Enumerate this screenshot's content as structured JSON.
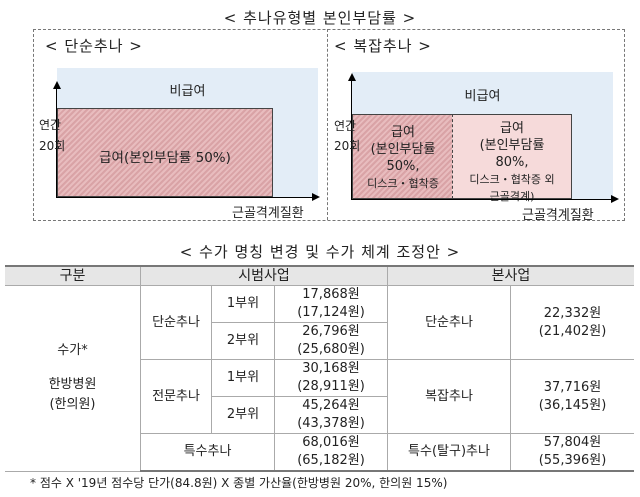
{
  "diagram": {
    "title": "< 추나유형별 본인부담률 >",
    "left": {
      "subtitle": "< 단순추나 >",
      "non_covered": "비급여",
      "y_label_1": "연간",
      "y_label_2": "20회",
      "covered": "급여(본인부담률 50%)",
      "x_label": "근골격계질환"
    },
    "right": {
      "subtitle": "< 복잡추나 >",
      "non_covered": "비급여",
      "y_label_1": "연간",
      "y_label_2": "20회",
      "covered_a": [
        "급여",
        "(본인부담률",
        "50%,",
        "디스크・협착증"
      ],
      "covered_b": [
        "급여",
        "(본인부담률",
        "80%,",
        "디스크・협착증 외",
        "근골격계)"
      ],
      "x_label": "근골격계질환"
    },
    "colors": {
      "non_covered": "#e3edf7",
      "covered_50": "#d9a3a6",
      "covered_80": "#f6dada"
    }
  },
  "table": {
    "title": "< 수가 명칭 변경 및 수가 체계 조정안 >",
    "headers": [
      "구분",
      "시범사업",
      "본사업"
    ],
    "row_label": [
      "수가*",
      "한방병원",
      "(한의원)"
    ],
    "pilot": [
      {
        "name": "단순추나",
        "parts": [
          {
            "part": "1부위",
            "v1": "17,868원",
            "v2": "(17,124원)"
          },
          {
            "part": "2부위",
            "v1": "26,796원",
            "v2": "(25,680원)"
          }
        ]
      },
      {
        "name": "전문추나",
        "parts": [
          {
            "part": "1부위",
            "v1": "30,168원",
            "v2": "(28,911원)"
          },
          {
            "part": "2부위",
            "v1": "45,264원",
            "v2": "(43,378원)"
          }
        ]
      },
      {
        "name": "특수추나",
        "v1": "68,016원",
        "v2": "(65,182원)"
      }
    ],
    "main": [
      {
        "name": "단순추나",
        "v1": "22,332원",
        "v2": "(21,402원)"
      },
      {
        "name": "복잡추나",
        "v1": "37,716원",
        "v2": "(36,145원)"
      },
      {
        "name": "특수(탈구)추나",
        "v1": "57,804원",
        "v2": "(55,396원)"
      }
    ],
    "footnote": "* 점수 X '19년 점수당 단가(84.8원) X 종별 가산율(한방병원 20%, 한의원 15%)"
  }
}
